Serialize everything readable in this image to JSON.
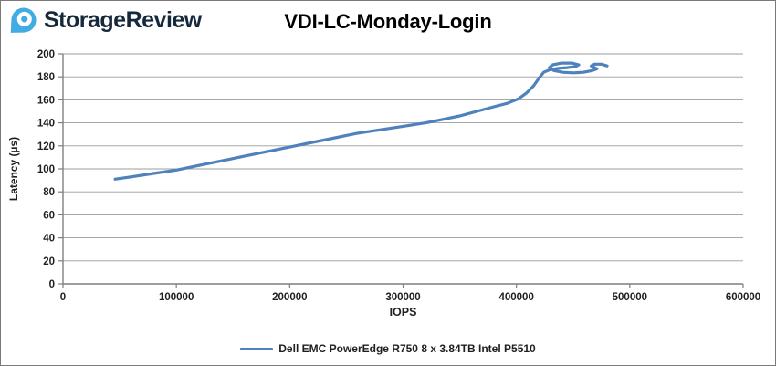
{
  "header": {
    "brand": "StorageReview",
    "logo_color": "#41ACE4",
    "brand_color": "#16293C"
  },
  "chart_data": {
    "type": "line",
    "title": "VDI-LC-Monday-Login",
    "xlabel": "IOPS",
    "ylabel": "Latency (µs)",
    "xlim": [
      0,
      600000
    ],
    "ylim": [
      0,
      200
    ],
    "x_ticks": [
      0,
      100000,
      200000,
      300000,
      400000,
      500000,
      600000
    ],
    "y_ticks": [
      0,
      20,
      40,
      60,
      80,
      100,
      120,
      140,
      160,
      180,
      200
    ],
    "grid": "horizontal",
    "gridline_color": "#9c9c9c",
    "axis_color": "#7f7f7f",
    "tick_label_color": "#1f1f1f",
    "legend_position": "bottom",
    "series": [
      {
        "name": "Dell EMC PowerEdge R750 8 x 3.84TB Intel P5510",
        "color": "#4F81BD",
        "points": [
          [
            46000,
            91
          ],
          [
            60000,
            93
          ],
          [
            80000,
            96
          ],
          [
            100000,
            99
          ],
          [
            120000,
            103
          ],
          [
            140000,
            107
          ],
          [
            160000,
            111
          ],
          [
            180000,
            115
          ],
          [
            200000,
            119
          ],
          [
            220000,
            123
          ],
          [
            240000,
            127
          ],
          [
            260000,
            131
          ],
          [
            280000,
            134
          ],
          [
            300000,
            137
          ],
          [
            320000,
            140
          ],
          [
            335000,
            143
          ],
          [
            350000,
            146
          ],
          [
            365000,
            150
          ],
          [
            380000,
            154
          ],
          [
            392000,
            157
          ],
          [
            402000,
            161
          ],
          [
            409000,
            166
          ],
          [
            415000,
            172
          ],
          [
            420000,
            179
          ],
          [
            424000,
            184
          ],
          [
            429000,
            186
          ],
          [
            437000,
            187.5
          ],
          [
            445000,
            188
          ],
          [
            452000,
            189
          ],
          [
            455000,
            190.5
          ],
          [
            449000,
            192
          ],
          [
            440000,
            192
          ],
          [
            432000,
            190.5
          ],
          [
            429000,
            188
          ],
          [
            433000,
            185.5
          ],
          [
            441000,
            184
          ],
          [
            450000,
            183.5
          ],
          [
            459000,
            184
          ],
          [
            467000,
            185.5
          ],
          [
            471000,
            187
          ],
          [
            466000,
            189.5
          ],
          [
            469000,
            191
          ],
          [
            475000,
            191
          ],
          [
            480000,
            189.5
          ]
        ]
      }
    ]
  }
}
